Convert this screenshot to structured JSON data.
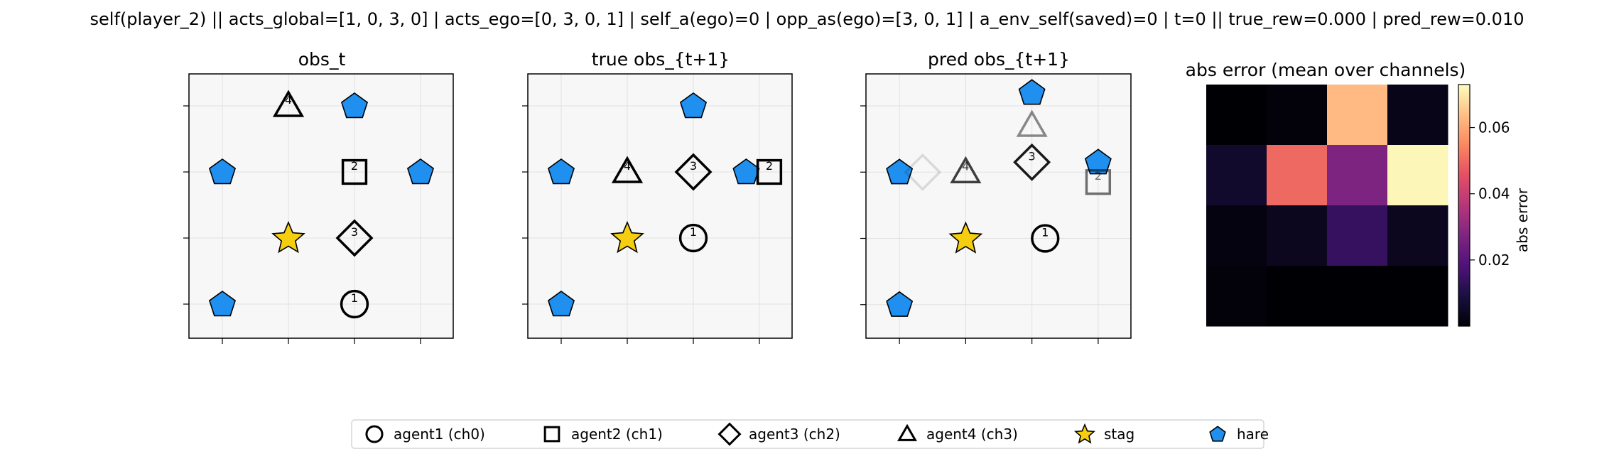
{
  "header": {
    "title": "self(player_2) || acts_global=[1, 0, 3, 0] | acts_ego=[0, 3, 0, 1] | self_a(ego)=0 | opp_as(ego)=[3, 0, 1] | a_env_self(saved)=0 | t=0 || true_rew=0.000 | pred_rew=0.010"
  },
  "colors": {
    "panel_bg": "#f7f7f7",
    "grid": "#e2e2e2",
    "stag": "#f5cf0f",
    "hare": "#1f8ff0",
    "outline": "#000000"
  },
  "chart_data": [
    {
      "type": "scatter",
      "title": "obs_t",
      "grid_size": 4,
      "agents": [
        {
          "id": "1",
          "shape": "circle",
          "col": 2,
          "row": 3,
          "alpha": 1.0
        },
        {
          "id": "2",
          "shape": "square",
          "col": 2,
          "row": 1,
          "alpha": 1.0
        },
        {
          "id": "3",
          "shape": "diamond",
          "col": 2,
          "row": 2,
          "alpha": 1.0
        },
        {
          "id": "4",
          "shape": "triangle",
          "col": 1,
          "row": 0,
          "alpha": 1.0
        }
      ],
      "stags": [
        {
          "col": 1,
          "row": 2
        }
      ],
      "hares": [
        {
          "col": 2,
          "row": 0
        },
        {
          "col": 0,
          "row": 1
        },
        {
          "col": 3,
          "row": 1
        },
        {
          "col": 0,
          "row": 3
        }
      ]
    },
    {
      "type": "scatter",
      "title": "true obs_{t+1}",
      "grid_size": 4,
      "agents": [
        {
          "id": "1",
          "shape": "circle",
          "col": 2,
          "row": 2,
          "alpha": 1.0
        },
        {
          "id": "2",
          "shape": "square",
          "col": 3.15,
          "row": 1,
          "alpha": 1.0
        },
        {
          "id": "3",
          "shape": "diamond",
          "col": 2,
          "row": 1,
          "alpha": 1.0
        },
        {
          "id": "4",
          "shape": "triangle",
          "col": 1,
          "row": 1,
          "alpha": 1.0
        }
      ],
      "stags": [
        {
          "col": 1,
          "row": 2
        }
      ],
      "hares": [
        {
          "col": 2,
          "row": 0
        },
        {
          "col": 0,
          "row": 1
        },
        {
          "col": 2.8,
          "row": 1
        },
        {
          "col": 0,
          "row": 3
        }
      ]
    },
    {
      "type": "scatter",
      "title": "pred obs_{t+1}",
      "grid_size": 4,
      "agents": [
        {
          "id": "1",
          "shape": "circle",
          "col": 2.2,
          "row": 2,
          "alpha": 1.0
        },
        {
          "id": "2",
          "shape": "square",
          "col": 3,
          "row": 1.15,
          "alpha": 0.55
        },
        {
          "id": "3",
          "shape": "diamond",
          "col": 2,
          "row": 0.85,
          "alpha": 0.9
        },
        {
          "id": "4",
          "shape": "triangle",
          "col": 1,
          "row": 1,
          "alpha": 0.75
        },
        {
          "id": "",
          "shape": "triangle",
          "col": 2,
          "row": 0.3,
          "alpha": 0.45
        },
        {
          "id": "",
          "shape": "diamond",
          "col": 0.35,
          "row": 1,
          "alpha": 0.12
        }
      ],
      "stags": [
        {
          "col": 1,
          "row": 2
        }
      ],
      "hares": [
        {
          "col": 2,
          "row": -0.2
        },
        {
          "col": 0,
          "row": 1
        },
        {
          "col": 3,
          "row": 0.85
        },
        {
          "col": 0,
          "row": 3
        }
      ]
    },
    {
      "type": "heatmap",
      "title": "abs error (mean over channels)",
      "rows": 4,
      "cols": 4,
      "values": [
        [
          0.0,
          0.001,
          0.063,
          0.003
        ],
        [
          0.006,
          0.05,
          0.027,
          0.072
        ],
        [
          0.002,
          0.004,
          0.014,
          0.004
        ],
        [
          0.001,
          0.0,
          0.0,
          0.0
        ]
      ],
      "vmin": 0.0,
      "vmax": 0.073,
      "colormap": "magma",
      "colorbar": {
        "label": "abs error",
        "ticks": [
          0.02,
          0.04,
          0.06
        ],
        "tick_labels": [
          "0.02",
          "0.04",
          "0.06"
        ]
      }
    }
  ],
  "legend": {
    "placement": "bottom-center",
    "items": [
      {
        "label": "agent1 (ch0)",
        "shape": "circle"
      },
      {
        "label": "agent2 (ch1)",
        "shape": "square"
      },
      {
        "label": "agent3 (ch2)",
        "shape": "diamond"
      },
      {
        "label": "agent4 (ch3)",
        "shape": "triangle"
      },
      {
        "label": "stag",
        "shape": "star"
      },
      {
        "label": "hare",
        "shape": "pentagon"
      }
    ]
  }
}
